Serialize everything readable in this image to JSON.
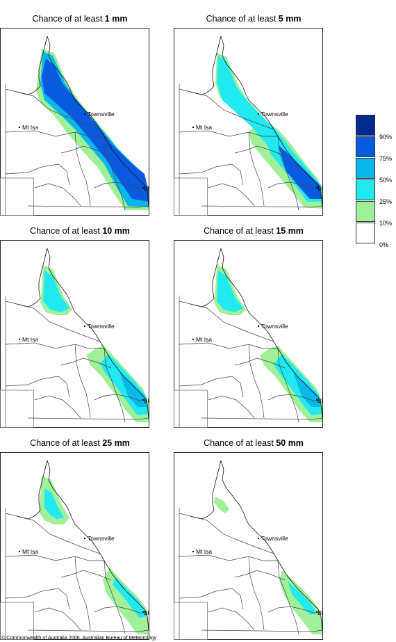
{
  "panels": [
    {
      "title_prefix": "Chance of at least ",
      "threshold": "1 mm",
      "level": 4
    },
    {
      "title_prefix": "Chance of at least ",
      "threshold": "5 mm",
      "level": 3
    },
    {
      "title_prefix": "Chance of at least ",
      "threshold": "10 mm",
      "level": 2
    },
    {
      "title_prefix": "Chance of at least ",
      "threshold": "15 mm",
      "level": 2
    },
    {
      "title_prefix": "Chance of at least ",
      "threshold": "25 mm",
      "level": 1
    },
    {
      "title_prefix": "Chance of at least ",
      "threshold": "50 mm",
      "level": 0
    }
  ],
  "places": {
    "townsville": "Townsville",
    "mt_isa": "Mt Isa",
    "brisbane": "BRIS"
  },
  "legend": {
    "ticks": [
      "90%",
      "75%",
      "50%",
      "25%",
      "10%",
      "0%"
    ],
    "colors": [
      "#002a8c",
      "#0a5ae0",
      "#08b8ea",
      "#22e8ef",
      "#a0f09a",
      "#ffffff"
    ]
  },
  "copyright": "© Commonwealth of Australia 2006, Australian Bureau of Meteorology"
}
